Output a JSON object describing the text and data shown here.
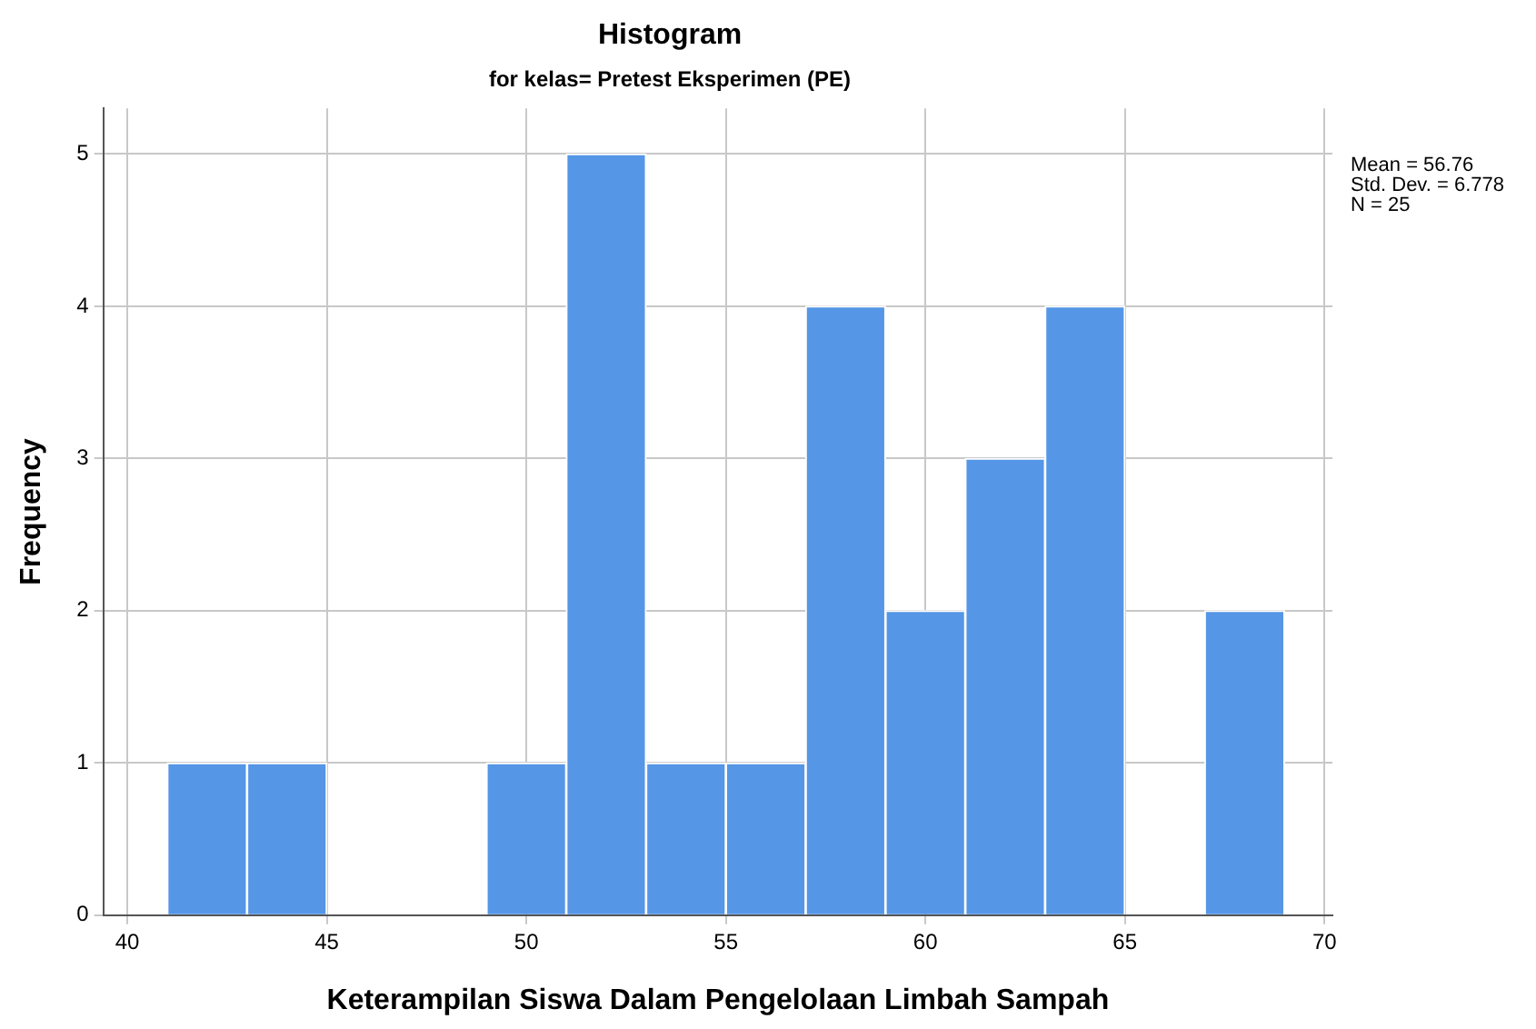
{
  "chart_data": {
    "type": "histogram",
    "title": "Histogram",
    "subtitle": "for kelas= Pretest Eksperimen (PE)",
    "xlabel": "Keterampilan Siswa Dalam Pengelolaan Limbah Sampah",
    "ylabel": "Frequency",
    "bins": [
      41,
      43,
      45,
      47,
      49,
      51,
      53,
      55,
      57,
      59,
      61,
      63,
      65,
      67,
      69
    ],
    "values": [
      1,
      1,
      0,
      0,
      1,
      5,
      1,
      1,
      4,
      2,
      3,
      4,
      0,
      2
    ],
    "color": "#5596e6",
    "xlim": [
      39.4,
      70.2
    ],
    "xticks": [
      40,
      45,
      50,
      55,
      60,
      65,
      70
    ],
    "ylim": [
      0,
      5.3
    ],
    "yticks": [
      0,
      1,
      2,
      3,
      4,
      5
    ],
    "grid": true,
    "annotations": [
      "Mean = 56.76",
      "Std. Dev. = 6.778",
      "N = 25"
    ]
  }
}
